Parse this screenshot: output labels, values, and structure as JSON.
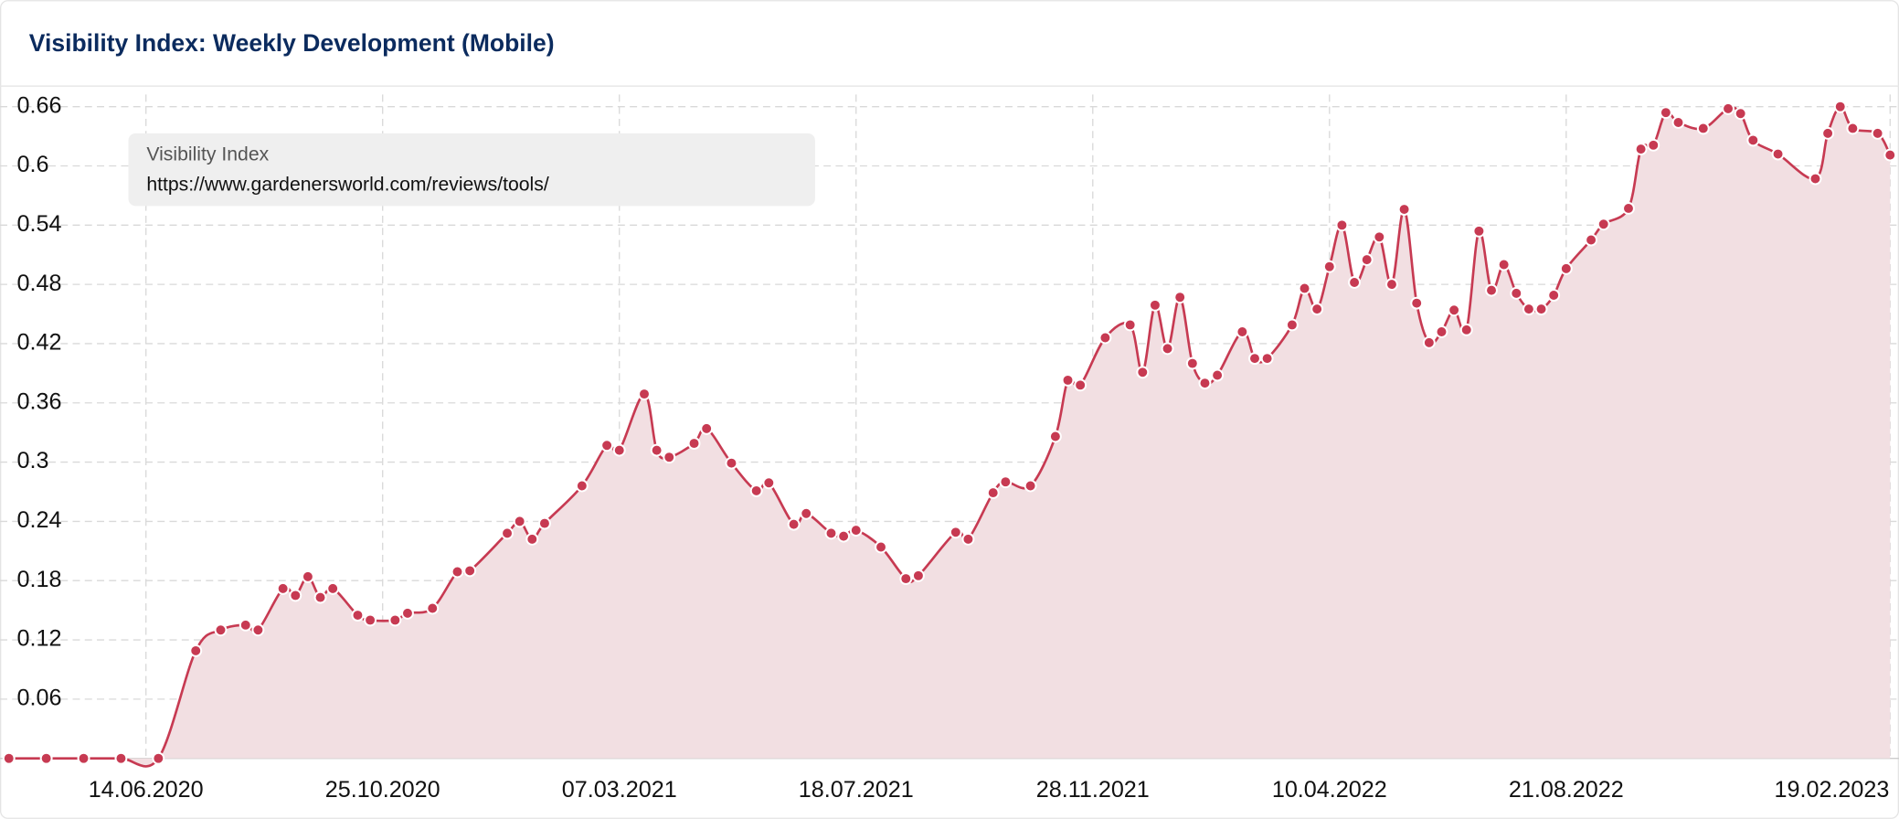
{
  "chart_data": {
    "type": "area",
    "title": "Visibility Index: Weekly Development (Mobile)",
    "x": [
      "29.03.2020",
      "19.04.2020",
      "10.05.2020",
      "31.05.2020",
      "21.06.2020",
      "12.07.2020",
      "26.07.2020",
      "09.08.2020",
      "16.08.2020",
      "30.08.2020",
      "06.09.2020",
      "13.09.2020",
      "20.09.2020",
      "27.09.2020",
      "11.10.2020",
      "18.10.2020",
      "01.11.2020",
      "08.11.2020",
      "22.11.2020",
      "06.12.2020",
      "13.12.2020",
      "03.01.2021",
      "10.01.2021",
      "17.01.2021",
      "24.01.2021",
      "14.02.2021",
      "28.02.2021",
      "07.03.2021",
      "21.03.2021",
      "28.03.2021",
      "04.04.2021",
      "18.04.2021",
      "25.04.2021",
      "09.05.2021",
      "23.05.2021",
      "30.05.2021",
      "13.06.2021",
      "20.06.2021",
      "04.07.2021",
      "11.07.2021",
      "18.07.2021",
      "01.08.2021",
      "15.08.2021",
      "22.08.2021",
      "12.09.2021",
      "19.09.2021",
      "03.10.2021",
      "10.10.2021",
      "24.10.2021",
      "07.11.2021",
      "14.11.2021",
      "21.11.2021",
      "05.12.2021",
      "19.12.2021",
      "26.12.2021",
      "02.01.2022",
      "09.01.2022",
      "16.01.2022",
      "23.01.2022",
      "30.01.2022",
      "06.02.2022",
      "20.02.2022",
      "27.02.2022",
      "06.03.2022",
      "20.03.2022",
      "27.03.2022",
      "03.04.2022",
      "10.04.2022",
      "17.04.2022",
      "24.04.2022",
      "01.05.2022",
      "08.05.2022",
      "15.05.2022",
      "22.05.2022",
      "29.05.2022",
      "05.06.2022",
      "12.06.2022",
      "19.06.2022",
      "26.06.2022",
      "03.07.2022",
      "10.07.2022",
      "17.07.2022",
      "24.07.2022",
      "31.07.2022",
      "07.08.2022",
      "14.08.2022",
      "21.08.2022",
      "04.09.2022",
      "11.09.2022",
      "25.09.2022",
      "02.10.2022",
      "09.10.2022",
      "16.10.2022",
      "23.10.2022",
      "06.11.2022",
      "20.11.2022",
      "27.11.2022",
      "04.12.2022",
      "18.12.2022",
      "08.01.2023",
      "15.01.2023",
      "22.01.2023",
      "29.01.2023",
      "12.02.2023",
      "19.02.2023"
    ],
    "series": [
      {
        "name": "Visibility Index",
        "url": "https://www.gardenersworld.com/reviews/tools/",
        "color": "#c73a52",
        "fill": "#f2dfe2",
        "values": [
          0,
          0,
          0,
          0,
          0,
          0.109,
          0.13,
          0.135,
          0.13,
          0.172,
          0.165,
          0.184,
          0.163,
          0.172,
          0.145,
          0.14,
          0.14,
          0.147,
          0.152,
          0.189,
          0.19,
          0.228,
          0.24,
          0.222,
          0.238,
          0.276,
          0.317,
          0.312,
          0.369,
          0.312,
          0.305,
          0.319,
          0.334,
          0.299,
          0.271,
          0.279,
          0.237,
          0.248,
          0.228,
          0.225,
          0.231,
          0.214,
          0.182,
          0.185,
          0.229,
          0.222,
          0.269,
          0.28,
          0.276,
          0.326,
          0.383,
          0.378,
          0.426,
          0.439,
          0.391,
          0.459,
          0.415,
          0.467,
          0.4,
          0.38,
          0.388,
          0.432,
          0.405,
          0.405,
          0.439,
          0.476,
          0.455,
          0.498,
          0.54,
          0.482,
          0.505,
          0.528,
          0.48,
          0.556,
          0.461,
          0.421,
          0.432,
          0.454,
          0.434,
          0.534,
          0.474,
          0.5,
          0.471,
          0.455,
          0.455,
          0.469,
          0.496,
          0.525,
          0.541,
          0.557,
          0.617,
          0.621,
          0.654,
          0.644,
          0.638,
          0.658,
          0.653,
          0.626,
          0.612,
          0.587,
          0.633,
          0.66,
          0.638,
          0.633,
          0.611
        ]
      }
    ],
    "xlim": [
      "24.03.2020",
      "24.02.2023"
    ],
    "xticks": [
      "14.06.2020",
      "25.10.2020",
      "07.03.2021",
      "18.07.2021",
      "28.11.2021",
      "10.04.2022",
      "21.08.2022",
      "19.02.2023"
    ],
    "ylim": [
      0,
      0.66
    ],
    "yticks": [
      0.06,
      0.12,
      0.18,
      0.24,
      0.3,
      0.36,
      0.42,
      0.48,
      0.54,
      0.6,
      0.66
    ],
    "grid": true
  }
}
